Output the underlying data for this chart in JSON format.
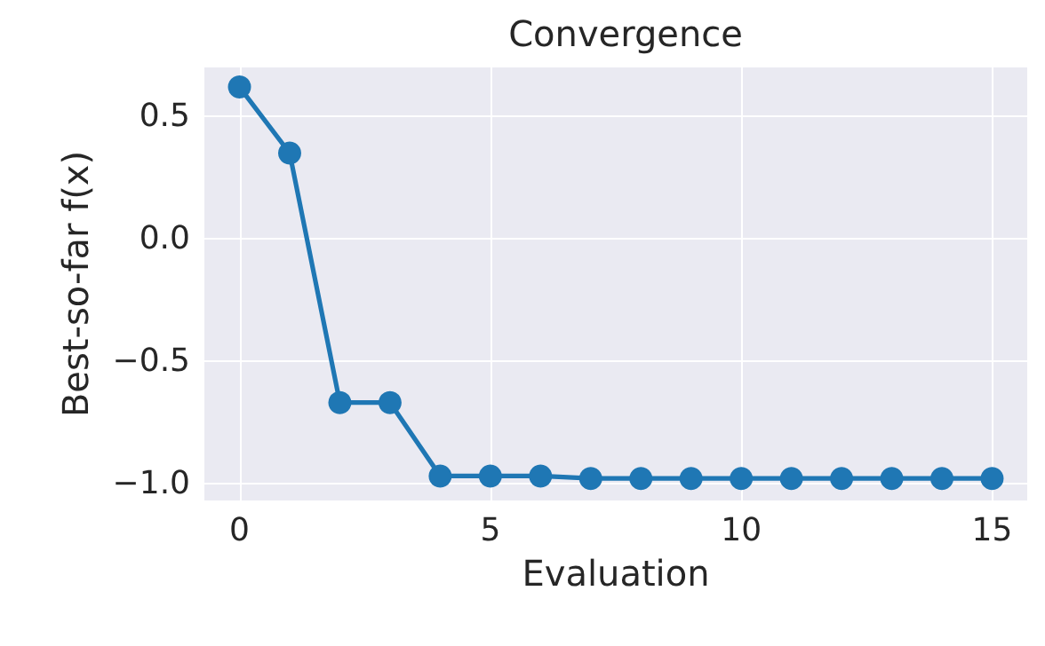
{
  "chart_data": {
    "type": "line",
    "title": "Convergence",
    "xlabel": "Evaluation",
    "ylabel": "Best-so-far f(x)",
    "x": [
      0,
      1,
      2,
      3,
      4,
      5,
      6,
      7,
      8,
      9,
      10,
      11,
      12,
      13,
      14,
      15
    ],
    "series": [
      {
        "color": "#1f77b4",
        "values": [
          0.62,
          0.35,
          -0.67,
          -0.67,
          -0.97,
          -0.97,
          -0.97,
          -0.98,
          -0.98,
          -0.98,
          -0.98,
          -0.98,
          -0.98,
          -0.98,
          -0.98,
          -0.98
        ]
      }
    ],
    "xlim": [
      -0.7,
      15.7
    ],
    "xticks": [
      0,
      5,
      10,
      15
    ],
    "ylim": [
      -1.07,
      0.7
    ],
    "yticks": [
      {
        "value": -1,
        "label": "−1.0"
      },
      {
        "value": -0.5,
        "label": "−0.5"
      },
      {
        "value": 0,
        "label": "0.0"
      },
      {
        "value": 0.5,
        "label": "0.5"
      }
    ],
    "grid": true,
    "marker": "circle",
    "line_style": "solid"
  }
}
